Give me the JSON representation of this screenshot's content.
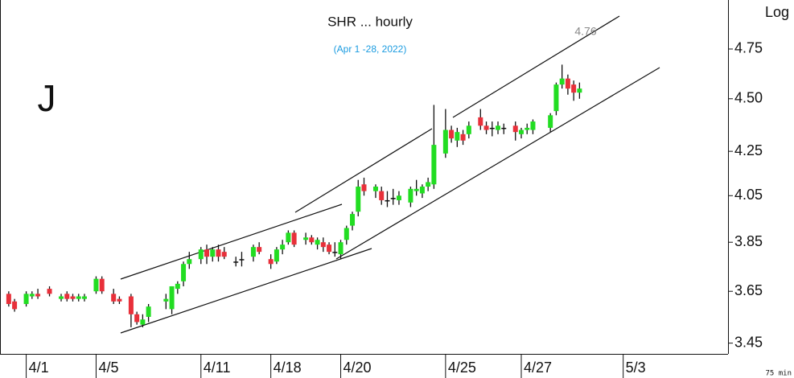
{
  "chart_data": {
    "type": "candlestick",
    "title": "SHR ... hourly",
    "subtitle": "(Apr 1 -28, 2022)",
    "big_label": "J",
    "scale_label": "Log",
    "interval_label": "75 min",
    "annotation": "4.76",
    "log_scale": true,
    "ylim": [
      3.41,
      5.01
    ],
    "yticks": [
      3.45,
      3.65,
      3.85,
      4.05,
      4.25,
      {
        "value": 4.5,
        "label": "4.50"
      },
      4.75
    ],
    "xlim": [
      -1.5,
      123.5
    ],
    "xticks": [
      {
        "value": 3,
        "label": "4/1"
      },
      {
        "value": 15,
        "label": "4/5"
      },
      {
        "value": 33,
        "label": "4/11"
      },
      {
        "value": 45,
        "label": "4/18"
      },
      {
        "value": 57,
        "label": "4/20"
      },
      {
        "value": 75,
        "label": "4/25"
      },
      {
        "value": 88,
        "label": "4/27"
      },
      {
        "value": 105.5,
        "label": "5/3"
      }
    ],
    "up_color": "#22dd22",
    "down_color": "#e8303a",
    "x": [
      0,
      1,
      3,
      4,
      5,
      7,
      9,
      10,
      11,
      12,
      13,
      15,
      16,
      18,
      19,
      21,
      22,
      23,
      24,
      27,
      28,
      29,
      30,
      31,
      33,
      34,
      35,
      36,
      37,
      39,
      40,
      42,
      43,
      45,
      46,
      47,
      48,
      49,
      51,
      52,
      53,
      54,
      55,
      56,
      57,
      58,
      59,
      60,
      61,
      63,
      64,
      65,
      66,
      67,
      69,
      70,
      71,
      72,
      73,
      75,
      76,
      77,
      78,
      79,
      81,
      82,
      83,
      84,
      85,
      87,
      88,
      89,
      90,
      93,
      94,
      95,
      96,
      97,
      98
    ],
    "open": [
      3.64,
      3.61,
      3.6,
      3.63,
      3.64,
      3.66,
      3.62,
      3.64,
      3.63,
      3.62,
      3.62,
      3.65,
      3.7,
      3.64,
      3.62,
      3.63,
      3.56,
      3.52,
      3.55,
      3.61,
      3.58,
      3.66,
      3.69,
      3.76,
      3.78,
      3.82,
      3.79,
      3.82,
      3.81,
      3.77,
      3.78,
      3.79,
      3.83,
      3.78,
      3.77,
      3.82,
      3.85,
      3.89,
      3.86,
      3.87,
      3.84,
      3.85,
      3.84,
      3.81,
      3.8,
      3.86,
      3.92,
      3.98,
      4.1,
      4.07,
      4.07,
      4.03,
      4.04,
      4.03,
      4.02,
      4.07,
      4.06,
      4.09,
      4.1,
      4.24,
      4.35,
      4.3,
      4.33,
      4.33,
      4.41,
      4.37,
      4.36,
      4.35,
      4.36,
      4.37,
      4.33,
      4.35,
      4.35,
      4.36,
      4.44,
      4.57,
      4.6,
      4.57,
      4.53
    ],
    "high": [
      3.65,
      3.62,
      3.65,
      3.65,
      3.66,
      3.67,
      3.64,
      3.65,
      3.64,
      3.64,
      3.64,
      3.71,
      3.71,
      3.66,
      3.63,
      3.64,
      3.57,
      3.56,
      3.6,
      3.64,
      3.67,
      3.69,
      3.77,
      3.81,
      3.83,
      3.84,
      3.83,
      3.84,
      3.83,
      3.79,
      3.81,
      3.84,
      3.85,
      3.8,
      3.83,
      3.86,
      3.9,
      3.9,
      3.89,
      3.88,
      3.87,
      3.87,
      3.85,
      3.85,
      3.86,
      3.92,
      3.98,
      4.12,
      4.13,
      4.1,
      4.09,
      4.07,
      4.08,
      4.07,
      4.09,
      4.12,
      4.1,
      4.13,
      4.47,
      4.45,
      4.37,
      4.36,
      4.35,
      4.39,
      4.45,
      4.39,
      4.39,
      4.39,
      4.38,
      4.39,
      4.36,
      4.38,
      4.4,
      4.43,
      4.58,
      4.67,
      4.62,
      4.59,
      4.58
    ],
    "low": [
      3.59,
      3.57,
      3.59,
      3.62,
      3.62,
      3.63,
      3.61,
      3.61,
      3.61,
      3.61,
      3.61,
      3.64,
      3.64,
      3.6,
      3.6,
      3.51,
      3.52,
      3.51,
      3.53,
      3.58,
      3.56,
      3.64,
      3.67,
      3.74,
      3.76,
      3.76,
      3.77,
      3.77,
      3.78,
      3.75,
      3.75,
      3.77,
      3.8,
      3.74,
      3.76,
      3.8,
      3.84,
      3.83,
      3.84,
      3.84,
      3.82,
      3.81,
      3.8,
      3.79,
      3.78,
      3.84,
      3.9,
      3.96,
      4.05,
      4.04,
      4.01,
      4.0,
      4.01,
      4.01,
      4.0,
      4.05,
      4.04,
      4.07,
      4.08,
      4.22,
      4.29,
      4.27,
      4.28,
      4.31,
      4.35,
      4.33,
      4.32,
      4.33,
      4.33,
      4.3,
      4.31,
      4.33,
      4.33,
      4.34,
      4.42,
      4.55,
      4.52,
      4.49,
      4.5
    ],
    "close": [
      3.6,
      3.58,
      3.64,
      3.64,
      3.63,
      3.64,
      3.63,
      3.62,
      3.62,
      3.63,
      3.63,
      3.7,
      3.65,
      3.61,
      3.61,
      3.56,
      3.53,
      3.54,
      3.59,
      3.62,
      3.67,
      3.68,
      3.76,
      3.78,
      3.82,
      3.79,
      3.82,
      3.79,
      3.79,
      3.77,
      3.78,
      3.83,
      3.81,
      3.76,
      3.82,
      3.84,
      3.89,
      3.84,
      3.87,
      3.85,
      3.86,
      3.83,
      3.81,
      3.81,
      3.85,
      3.91,
      3.97,
      4.09,
      4.07,
      4.09,
      4.03,
      4.03,
      4.04,
      4.05,
      4.08,
      4.08,
      4.09,
      4.11,
      4.28,
      4.35,
      4.31,
      4.34,
      4.3,
      4.37,
      4.37,
      4.35,
      4.36,
      4.37,
      4.36,
      4.34,
      4.35,
      4.36,
      4.39,
      4.42,
      4.57,
      4.6,
      4.55,
      4.53,
      4.55
    ]
  }
}
